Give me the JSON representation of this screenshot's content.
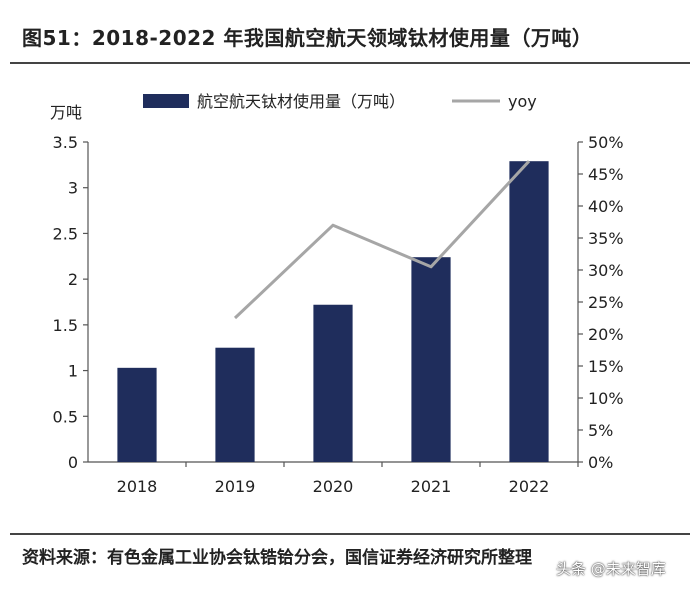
{
  "header": {
    "title": "图51：2018-2022 年我国航空航天领域钛材使用量（万吨）"
  },
  "footer": {
    "source": "资料来源：有色金属工业协会钛锆铪分会，国信证券经济研究所整理",
    "watermark": "头条 @未来智库"
  },
  "chart_data": {
    "type": "bar",
    "categories": [
      "2018",
      "2019",
      "2020",
      "2021",
      "2022"
    ],
    "series": [
      {
        "name": "航空航天钛材使用量（万吨）",
        "kind": "bar",
        "axis": "left",
        "values": [
          1.03,
          1.25,
          1.72,
          2.24,
          3.29
        ],
        "color": "#1f2d5c"
      },
      {
        "name": "yoy",
        "kind": "line",
        "axis": "right",
        "values": [
          null,
          22.5,
          37.0,
          30.5,
          47.0
        ],
        "color": "#a6a6a6"
      }
    ],
    "left_axis": {
      "unit": "万吨",
      "ylim": [
        0,
        3.5
      ],
      "ticks": [
        "0",
        "0.5",
        "1",
        "1.5",
        "2",
        "2.5",
        "3",
        "3.5"
      ]
    },
    "right_axis": {
      "ylim": [
        0,
        50
      ],
      "ticks": [
        "0%",
        "5%",
        "10%",
        "15%",
        "20%",
        "25%",
        "30%",
        "35%",
        "40%",
        "45%",
        "50%"
      ]
    },
    "legend_position": "top",
    "grid": false
  }
}
